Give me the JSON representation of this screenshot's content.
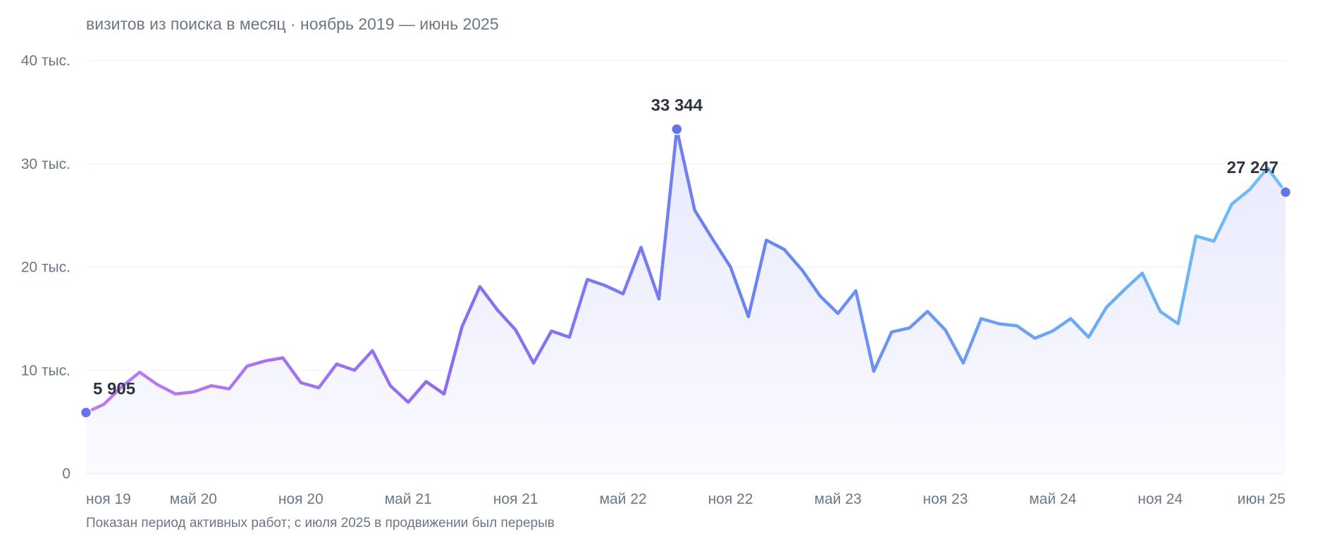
{
  "chart_data": {
    "type": "line",
    "title": "визитов из поиска в месяц · ноябрь 2019 — июнь 2025",
    "footnote": "Показан период активных работ; с июля 2025 в продвижении был перерыв",
    "ylim": [
      0,
      40000
    ],
    "y_ticks": [
      {
        "value": 0,
        "label": "0"
      },
      {
        "value": 10000,
        "label": "10 тыс."
      },
      {
        "value": 20000,
        "label": "20 тыс."
      },
      {
        "value": 30000,
        "label": "30 тыс."
      },
      {
        "value": 40000,
        "label": "40 тыс."
      }
    ],
    "x_ticks": [
      {
        "index": 0,
        "label": "ноя 19"
      },
      {
        "index": 6,
        "label": "май 20"
      },
      {
        "index": 12,
        "label": "ноя 20"
      },
      {
        "index": 18,
        "label": "май 21"
      },
      {
        "index": 24,
        "label": "ноя 21"
      },
      {
        "index": 30,
        "label": "май 22"
      },
      {
        "index": 36,
        "label": "ноя 22"
      },
      {
        "index": 42,
        "label": "май 23"
      },
      {
        "index": 48,
        "label": "ноя 23"
      },
      {
        "index": 54,
        "label": "май 24"
      },
      {
        "index": 60,
        "label": "ноя 24"
      },
      {
        "index": 67,
        "label": "июн 25"
      }
    ],
    "x": [
      "2019-11",
      "2019-12",
      "2020-01",
      "2020-02",
      "2020-03",
      "2020-04",
      "2020-05",
      "2020-06",
      "2020-07",
      "2020-08",
      "2020-09",
      "2020-10",
      "2020-11",
      "2020-12",
      "2021-01",
      "2021-02",
      "2021-03",
      "2021-04",
      "2021-05",
      "2021-06",
      "2021-07",
      "2021-08",
      "2021-09",
      "2021-10",
      "2021-11",
      "2021-12",
      "2022-01",
      "2022-02",
      "2022-03",
      "2022-04",
      "2022-05",
      "2022-06",
      "2022-07",
      "2022-08",
      "2022-09",
      "2022-10",
      "2022-11",
      "2022-12",
      "2023-01",
      "2023-02",
      "2023-03",
      "2023-04",
      "2023-05",
      "2023-06",
      "2023-07",
      "2023-08",
      "2023-09",
      "2023-10",
      "2023-11",
      "2023-12",
      "2024-01",
      "2024-02",
      "2024-03",
      "2024-04",
      "2024-05",
      "2024-06",
      "2024-07",
      "2024-08",
      "2024-09",
      "2024-10",
      "2024-11",
      "2024-12",
      "2025-01",
      "2025-02",
      "2025-03",
      "2025-04",
      "2025-05",
      "2025-06"
    ],
    "series": [
      {
        "values": [
          5905,
          6700,
          8400,
          9800,
          8600,
          7700,
          7900,
          8500,
          8200,
          10400,
          10900,
          11200,
          8800,
          8300,
          10600,
          10000,
          11900,
          8500,
          6900,
          8900,
          7700,
          14200,
          18100,
          15800,
          13900,
          10700,
          13800,
          13200,
          18800,
          18200,
          17400,
          21900,
          16900,
          33344,
          25500,
          22700,
          20000,
          15200,
          22600,
          21700,
          19700,
          17200,
          15500,
          17700,
          9900,
          13700,
          14100,
          15700,
          13900,
          10700,
          15000,
          14500,
          14300,
          13100,
          13800,
          15000,
          13200,
          16100,
          17800,
          19400,
          15700,
          14500,
          23000,
          22500,
          26100,
          27500,
          29600,
          27247
        ]
      }
    ],
    "labeled_points": [
      {
        "index": 0,
        "label": "5 905"
      },
      {
        "index": 33,
        "label": "33 344"
      },
      {
        "index": 67,
        "label": "27 247"
      }
    ],
    "grid": true,
    "colors": {
      "gradient_start": "#c07cf0",
      "gradient_mid1": "#8d6cf2",
      "gradient_mid2": "#6a84f1",
      "gradient_end": "#6ec0f6",
      "marker": "#6374ec",
      "area_top": "#e8e9fd",
      "area_bottom": "#fafaff"
    }
  }
}
